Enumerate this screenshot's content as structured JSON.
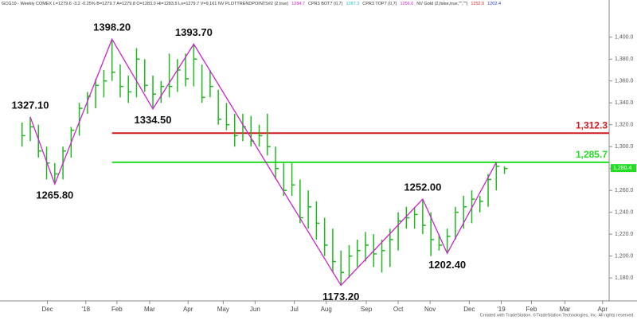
{
  "chart_data": {
    "type": "ohlc",
    "header": [
      {
        "text": "GCG19 - Weekly COMEX  L=1279.6  -3.2  -0.25%  B=1279.7  A=1279.8  O=1283.0  Hi=1283.5  Lo=1279.7  V=9,161  NV  PLOTTRENDPOINTS#2 (2,true)",
        "color": "#333333"
      },
      {
        "text": "1284.7",
        "color": "#cc22cc"
      },
      {
        "text": "CPR3 BOT7 (0,7)",
        "color": "#333333"
      },
      {
        "text": "1287.3",
        "color": "#22bbcc"
      },
      {
        "text": "CPR3 TOP7 (0,7)",
        "color": "#333333"
      },
      {
        "text": "1256.6",
        "color": "#cc22cc"
      },
      {
        "text": "NV Gold (2,false,true,\"\",\"\")",
        "color": "#333333"
      },
      {
        "text": "1252.0",
        "color": "#dd2222"
      },
      {
        "text": "1202.4",
        "color": "#2233cc"
      }
    ],
    "footer": "Created with TradeStation. ©TradeStation Technologies, Inc. All rights reserved.",
    "ylim": [
      1159,
      1434
    ],
    "yticks": [
      {
        "value": 1180,
        "label": "1,180.0"
      },
      {
        "value": 1200,
        "label": "1,200.0"
      },
      {
        "value": 1220,
        "label": "1,220.0"
      },
      {
        "value": 1240,
        "label": "1,240.0"
      },
      {
        "value": 1260,
        "label": "1,260.0"
      },
      {
        "value": 1280,
        "label": "1,280.0"
      },
      {
        "value": 1300,
        "label": "1,300.0"
      },
      {
        "value": 1320,
        "label": "1,320.0"
      },
      {
        "value": 1340,
        "label": "1,340.0"
      },
      {
        "value": 1360,
        "label": "1,360.0"
      },
      {
        "value": 1380,
        "label": "1,380.0"
      },
      {
        "value": 1400,
        "label": "1,400.0"
      }
    ],
    "xlim": [
      -2.7,
      71.8
    ],
    "xticks": [
      {
        "value": 3.1,
        "label": "Dec"
      },
      {
        "value": 7.8,
        "label": "'18"
      },
      {
        "value": 11.6,
        "label": "Feb"
      },
      {
        "value": 15.6,
        "label": "Mar"
      },
      {
        "value": 20.3,
        "label": "Apr"
      },
      {
        "value": 24.6,
        "label": "May"
      },
      {
        "value": 28.5,
        "label": "Jun"
      },
      {
        "value": 33.3,
        "label": "Jul"
      },
      {
        "value": 37.2,
        "label": "Aug"
      },
      {
        "value": 42.1,
        "label": "Sep"
      },
      {
        "value": 46,
        "label": "Oct"
      },
      {
        "value": 49.9,
        "label": "Nov"
      },
      {
        "value": 54.7,
        "label": "Dec"
      },
      {
        "value": 58.6,
        "label": "'19"
      },
      {
        "value": 62.3,
        "label": "Feb"
      },
      {
        "value": 66.4,
        "label": "Mar"
      },
      {
        "value": 71,
        "label": "Apr"
      }
    ],
    "series": [
      {
        "color": "#1fb81f",
        "high": [
          1322,
          1327.1,
          1320,
          1300,
          1285,
          1300,
          1318,
          1340,
          1350,
          1362,
          1370,
          1398.2,
          1375,
          1365,
          1390,
          1380,
          1365,
          1360,
          1385,
          1380,
          1385,
          1393.7,
          1375,
          1370,
          1352,
          1340,
          1330,
          1330,
          1328,
          1320,
          1330,
          1300,
          1285,
          1285,
          1270,
          1260,
          1250,
          1235,
          1225,
          1205,
          1210,
          1215,
          1222,
          1220,
          1215,
          1225,
          1240,
          1245,
          1245,
          1252,
          1240,
          1220,
          1225,
          1245,
          1255,
          1260,
          1255,
          1275,
          1285,
          1282
        ],
        "low": [
          1300,
          1305,
          1290,
          1270,
          1265.8,
          1270,
          1290,
          1310,
          1330,
          1335,
          1345,
          1360,
          1345,
          1340,
          1345,
          1350,
          1334.5,
          1340,
          1345,
          1350,
          1355,
          1355,
          1340,
          1345,
          1320,
          1315,
          1300,
          1305,
          1300,
          1300,
          1292,
          1270,
          1255,
          1255,
          1230,
          1225,
          1215,
          1200,
          1185,
          1173.2,
          1180,
          1190,
          1195,
          1190,
          1185,
          1190,
          1205,
          1225,
          1225,
          1220,
          1200,
          1205,
          1202.4,
          1215,
          1225,
          1230,
          1240,
          1245,
          1260,
          1275
        ],
        "close": [
          1310,
          1318,
          1296,
          1285,
          1275,
          1296,
          1315,
          1335,
          1346,
          1356,
          1360,
          1368,
          1355,
          1350,
          1380,
          1356,
          1348,
          1355,
          1355,
          1370,
          1362,
          1380,
          1345,
          1355,
          1325,
          1320,
          1310,
          1318,
          1305,
          1310,
          1300,
          1280,
          1260,
          1265,
          1235,
          1245,
          1230,
          1210,
          1195,
          1185,
          1200,
          1205,
          1210,
          1202,
          1205,
          1215,
          1232,
          1235,
          1238,
          1228,
          1215,
          1210,
          1218,
          1240,
          1245,
          1252,
          1250,
          1270,
          1282,
          1280
        ]
      }
    ],
    "zigzag": {
      "color": "#cc22cc",
      "x": [
        1,
        4,
        11,
        16,
        21,
        39,
        49,
        52,
        58
      ],
      "values": [
        1327.1,
        1265.8,
        1398.2,
        1334.5,
        1393.7,
        1173.2,
        1252,
        1202.4,
        1285.7
      ],
      "value_labels": [
        "1327.10",
        "1265.80",
        "1398.20",
        "1334.50",
        "1393.70",
        "1173.20",
        "1252.00",
        "1202.40",
        null
      ]
    },
    "hlines": [
      {
        "value": 1312.3,
        "label": "1,312.3",
        "color": "#d0191c",
        "from_x": 11
      },
      {
        "value": 1285.7,
        "label": "1,285.7",
        "color": "#22dd22",
        "from_x": 11
      }
    ],
    "last_price": {
      "value": 1280.4,
      "label": "1,280.4",
      "color": "#22dd22"
    }
  }
}
